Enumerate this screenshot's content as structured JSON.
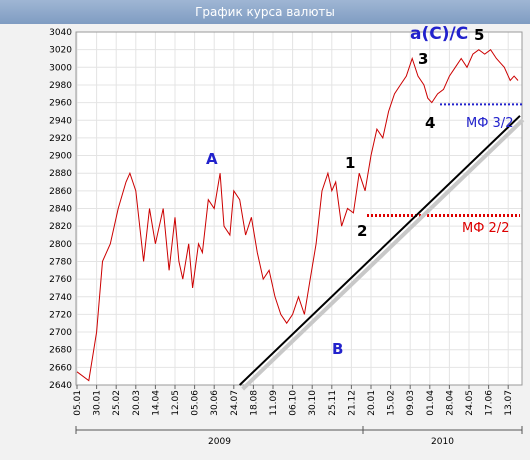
{
  "title": "График курса валюты",
  "chart_data": {
    "type": "line",
    "ylim": [
      2640,
      3040
    ],
    "yticks": [
      2640,
      2660,
      2680,
      2700,
      2720,
      2740,
      2760,
      2780,
      2800,
      2820,
      2840,
      2860,
      2880,
      2900,
      2920,
      2940,
      2960,
      2980,
      3000,
      3020,
      3040
    ],
    "xticks": [
      "05.01",
      "30.01",
      "25.02",
      "20.03",
      "14.04",
      "12.05",
      "05.06",
      "30.06",
      "24.07",
      "18.08",
      "11.09",
      "06.10",
      "30.10",
      "25.11",
      "21.12",
      "20.01",
      "15.02",
      "09.03",
      "01.04",
      "28.04",
      "24.05",
      "17.06",
      "13.07"
    ],
    "years": [
      "2009",
      "2010"
    ],
    "grid": true,
    "series": [
      {
        "color": "#cc0000",
        "x": [
          0,
          0.6,
          1.0,
          1.3,
          1.7,
          2.1,
          2.5,
          2.7,
          3.0,
          3.4,
          3.7,
          4.0,
          4.4,
          4.7,
          5.0,
          5.2,
          5.4,
          5.7,
          5.9,
          6.2,
          6.4,
          6.7,
          7.0,
          7.3,
          7.5,
          7.8,
          8.0,
          8.3,
          8.6,
          8.9,
          9.2,
          9.5,
          9.8,
          10.1,
          10.4,
          10.7,
          11.0,
          11.3,
          11.6,
          11.9,
          12.2,
          12.5,
          12.8,
          13.0,
          13.2,
          13.5,
          13.8,
          14.1,
          14.4,
          14.7,
          15.0,
          15.3,
          15.6,
          15.9,
          16.2,
          16.5,
          16.8,
          17.1,
          17.4,
          17.7,
          17.9,
          18.1,
          18.4,
          18.7,
          19.0,
          19.3,
          19.6,
          19.9,
          20.2,
          20.5,
          20.8,
          21.1,
          21.4,
          21.6,
          21.8,
          22.1,
          22.3,
          22.5
        ],
        "values": [
          2655,
          2645,
          2700,
          2780,
          2800,
          2840,
          2870,
          2880,
          2860,
          2780,
          2840,
          2800,
          2840,
          2770,
          2830,
          2780,
          2760,
          2800,
          2750,
          2800,
          2790,
          2850,
          2840,
          2880,
          2820,
          2810,
          2860,
          2850,
          2810,
          2830,
          2790,
          2760,
          2770,
          2740,
          2720,
          2710,
          2720,
          2740,
          2720,
          2760,
          2800,
          2860,
          2880,
          2860,
          2870,
          2820,
          2840,
          2835,
          2880,
          2860,
          2900,
          2930,
          2920,
          2950,
          2970,
          2980,
          2990,
          3010,
          2990,
          2980,
          2965,
          2960,
          2970,
          2975,
          2990,
          3000,
          3010,
          3000,
          3015,
          3020,
          3015,
          3020,
          3010,
          3005,
          3000,
          2985,
          2990,
          2985
        ],
        "points_note": ""
      }
    ],
    "annotations": {
      "wave_A": "A",
      "wave_B": "B",
      "wave_1": "1",
      "wave_2": "2",
      "wave_3": "3",
      "wave_4": "4",
      "wave_5": "5",
      "wave_top": "a(C)/C",
      "mf_lower": "МФ 2/2",
      "mf_upper": "МФ 3/2"
    },
    "levels": {
      "mf_lower_value": 2832,
      "mf_upper_value": 2958
    },
    "trendline": {
      "from": {
        "x": 8.3,
        "y": 2640
      },
      "to": {
        "x": 22.6,
        "y": 2945
      }
    }
  }
}
